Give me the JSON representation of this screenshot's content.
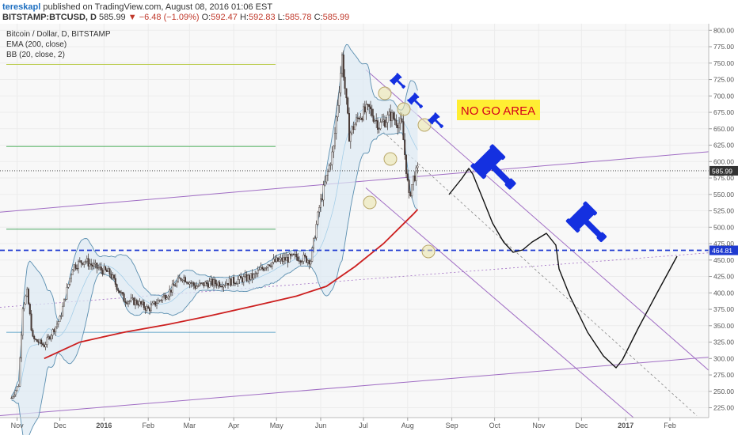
{
  "header": {
    "author": "tereskapl",
    "published": "published on TradingView.com, August 08, 2016 01:06 EST",
    "symbol": "BITSTAMP:BTCUSD, D",
    "last": "585.99",
    "change": "−6.48 (−1.09%)",
    "ohlc": {
      "o_label": "O:",
      "o": "592.47",
      "h_label": "H:",
      "h": "592.83",
      "l_label": "L:",
      "l": "585.78",
      "c_label": "C:",
      "c": "585.99"
    }
  },
  "legend": {
    "title": "Bitcoin / Dollar, D, BITSTAMP",
    "ema": "EMA (200, close)",
    "bb": "BB (20, close, 2)"
  },
  "annotations": {
    "no_go": "NO GO AREA"
  },
  "colors": {
    "ema": "#cc1f1f",
    "bb_band": "#5b8fb0",
    "bb_fill": "#dde9f3",
    "channel": "#a06dc4",
    "support": "#1f3ad0",
    "drawn_path": "#111111",
    "candle_up": "#f0f0f0",
    "candle_down": "#4a3a36",
    "annotation_bg": "#ffee33",
    "annotation_text": "#d4001c",
    "gavel": "#1430e0"
  },
  "chart_data": {
    "type": "candlestick",
    "title": "Bitcoin / Dollar, D, BITSTAMP",
    "ylim": [
      210,
      810
    ],
    "yticks": [
      "800.00",
      "775.00",
      "750.00",
      "725.00",
      "700.00",
      "675.00",
      "650.00",
      "625.00",
      "600.00",
      "575.00",
      "550.00",
      "525.00",
      "500.00",
      "475.00",
      "450.00",
      "425.00",
      "400.00",
      "375.00",
      "350.00",
      "325.00",
      "300.00",
      "275.00",
      "250.00",
      "225.00"
    ],
    "xticks": [
      "Nov",
      "Dec",
      "2016",
      "Feb",
      "Mar",
      "Apr",
      "May",
      "Jun",
      "Jul",
      "Aug",
      "Sep",
      "Oct",
      "Nov",
      "Dec",
      "2017",
      "Feb"
    ],
    "price_labels": [
      {
        "value": 585.99,
        "text": "585.99"
      },
      {
        "value": 464.81,
        "text": "464.81"
      }
    ],
    "fib_levels": [
      748,
      623,
      497,
      340
    ],
    "support_level": 464.81,
    "series": [
      {
        "type": "close",
        "values": [
          [
            "2015-10-28",
            240
          ],
          [
            "2015-11-02",
            260
          ],
          [
            "2015-11-05",
            380
          ],
          [
            "2015-11-08",
            400
          ],
          [
            "2015-11-12",
            330
          ],
          [
            "2015-11-20",
            320
          ],
          [
            "2015-12-01",
            360
          ],
          [
            "2015-12-10",
            440
          ],
          [
            "2015-12-18",
            450
          ],
          [
            "2015-12-25",
            440
          ],
          [
            "2016-01-05",
            430
          ],
          [
            "2016-01-15",
            390
          ],
          [
            "2016-01-25",
            385
          ],
          [
            "2016-02-01",
            375
          ],
          [
            "2016-02-15",
            400
          ],
          [
            "2016-02-25",
            425
          ],
          [
            "2016-03-05",
            410
          ],
          [
            "2016-03-15",
            415
          ],
          [
            "2016-03-25",
            415
          ],
          [
            "2016-04-05",
            420
          ],
          [
            "2016-04-15",
            425
          ],
          [
            "2016-04-25",
            445
          ],
          [
            "2016-05-05",
            450
          ],
          [
            "2016-05-15",
            455
          ],
          [
            "2016-05-25",
            450
          ],
          [
            "2016-05-31",
            530
          ],
          [
            "2016-06-05",
            575
          ],
          [
            "2016-06-10",
            620
          ],
          [
            "2016-06-16",
            760
          ],
          [
            "2016-06-21",
            640
          ],
          [
            "2016-06-28",
            670
          ],
          [
            "2016-07-05",
            680
          ],
          [
            "2016-07-12",
            655
          ],
          [
            "2016-07-20",
            670
          ],
          [
            "2016-07-28",
            655
          ],
          [
            "2016-08-02",
            545
          ],
          [
            "2016-08-05",
            575
          ],
          [
            "2016-08-08",
            585.99
          ]
        ]
      },
      {
        "type": "ema",
        "name": "EMA (200, close)",
        "values": [
          [
            "2015-11-20",
            300
          ],
          [
            "2015-12-15",
            325
          ],
          [
            "2016-01-15",
            340
          ],
          [
            "2016-02-15",
            352
          ],
          [
            "2016-03-15",
            365
          ],
          [
            "2016-04-15",
            380
          ],
          [
            "2016-05-15",
            395
          ],
          [
            "2016-06-05",
            410
          ],
          [
            "2016-06-25",
            440
          ],
          [
            "2016-07-15",
            475
          ],
          [
            "2016-08-05",
            520
          ],
          [
            "2016-08-08",
            527
          ]
        ]
      }
    ]
  }
}
